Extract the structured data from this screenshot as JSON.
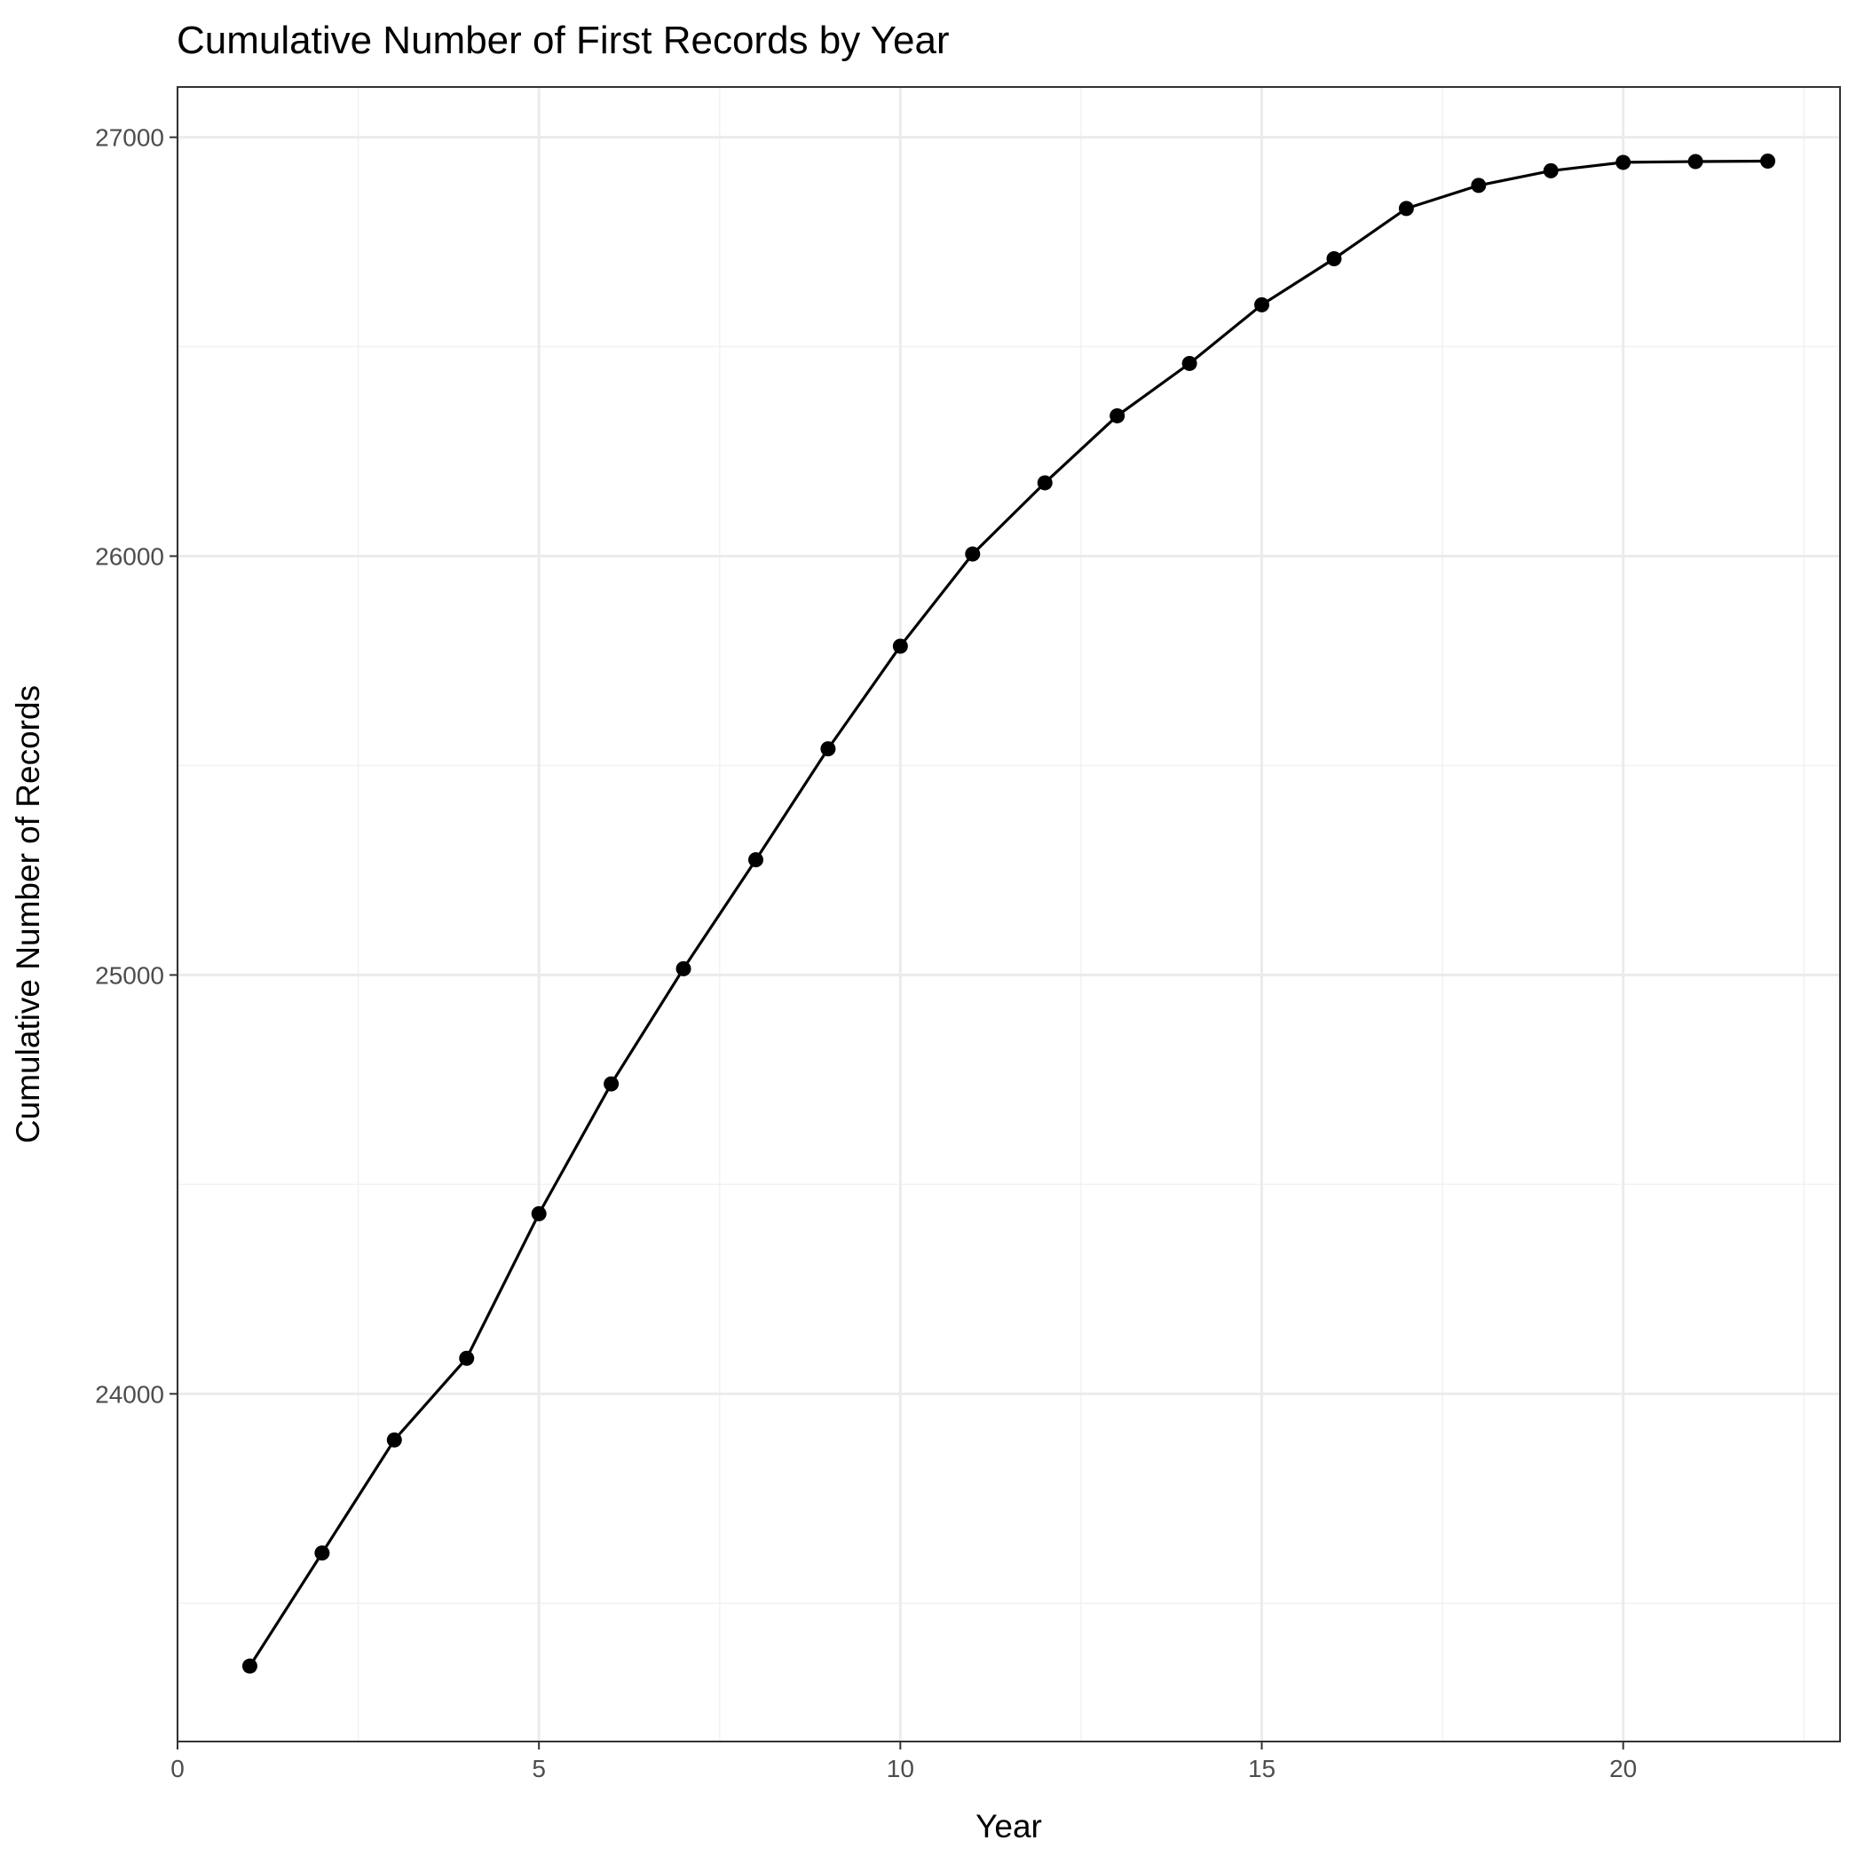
{
  "chart_data": {
    "type": "line",
    "title": "Cumulative Number of First Records by Year",
    "xlabel": "Year",
    "ylabel": "Cumulative Number of Records",
    "xlim": [
      0,
      23
    ],
    "ylim": [
      23170,
      27120
    ],
    "x_ticks": [
      0,
      5,
      10,
      15,
      20
    ],
    "x_tick_labels": [
      "0",
      "5",
      "10",
      "15",
      "20"
    ],
    "y_ticks": [
      24000,
      25000,
      26000,
      27000
    ],
    "y_tick_labels": [
      "24000",
      "25000",
      "26000",
      "27000"
    ],
    "grid": true,
    "legend": "none",
    "series": [
      {
        "color": "#000000",
        "x": [
          1,
          2,
          3,
          4,
          5,
          6,
          7,
          8,
          9,
          10,
          11,
          12,
          13,
          14,
          15,
          16,
          17,
          18,
          19,
          20,
          21,
          22
        ],
        "y": [
          23350,
          23620,
          23890,
          24085,
          24430,
          24740,
          25015,
          25275,
          25540,
          25785,
          26005,
          26175,
          26335,
          26460,
          26600,
          26710,
          26830,
          26885,
          26920,
          26940,
          26942,
          26943
        ]
      }
    ]
  }
}
